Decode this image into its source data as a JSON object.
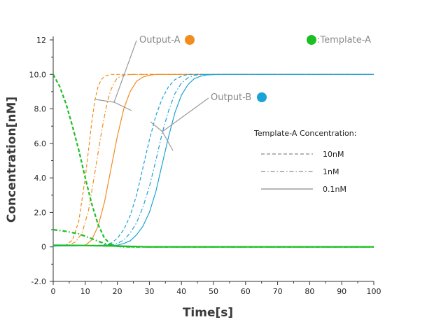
{
  "chart_data": {
    "type": "line",
    "title": "",
    "xlabel": "Time[s]",
    "ylabel": "Concentration[nM]",
    "xlim": [
      0,
      100
    ],
    "ylim": [
      -2,
      12
    ],
    "x_ticks": [
      "0",
      "10",
      "20",
      "30",
      "40",
      "50",
      "60",
      "70",
      "80",
      "90",
      "100"
    ],
    "y_ticks": [
      "-2.0",
      "0",
      "2.0",
      "4.0",
      "6.0",
      "8.0",
      "10.0",
      "12"
    ],
    "grid": false,
    "colors": {
      "output_a": "#f28c1e",
      "output_b": "#1aa3d6",
      "template_a": "#1bbf24",
      "annotation": "#9a9a9a",
      "legend_line": "#8a8a8a"
    },
    "annotations": {
      "output_a": "Output-A",
      "output_b": "Output-B",
      "template_a": ":Template-A"
    },
    "legend": {
      "title": "Template-A Concentration:",
      "placement": "right",
      "entries": [
        {
          "label": "10nM",
          "style": "dashed"
        },
        {
          "label": "1nM",
          "style": "dashdot"
        },
        {
          "label": "0.1nM",
          "style": "solid"
        }
      ]
    },
    "series": [
      {
        "group": "output_a",
        "style": "dashed",
        "x": [
          0,
          4,
          6,
          8,
          10,
          11,
          12,
          13,
          14,
          15,
          16,
          18,
          20,
          25,
          100
        ],
        "y": [
          0.05,
          0.1,
          0.4,
          1.5,
          4.0,
          5.6,
          7.2,
          8.5,
          9.3,
          9.7,
          9.9,
          10.0,
          10.0,
          10.0,
          10.0
        ]
      },
      {
        "group": "output_a",
        "style": "dashdot",
        "x": [
          0,
          5,
          7,
          9,
          11,
          13,
          15,
          16,
          17,
          18,
          19,
          20,
          22,
          25,
          30,
          100
        ],
        "y": [
          0.05,
          0.1,
          0.3,
          0.8,
          2.1,
          4.3,
          6.6,
          7.6,
          8.5,
          9.1,
          9.5,
          9.8,
          9.95,
          10.0,
          10.0,
          10.0
        ]
      },
      {
        "group": "output_a",
        "style": "solid",
        "x": [
          0,
          10,
          12,
          14,
          16,
          18,
          20,
          22,
          24,
          26,
          28,
          30,
          32,
          35,
          40,
          100
        ],
        "y": [
          0.05,
          0.1,
          0.4,
          1.2,
          2.6,
          4.5,
          6.4,
          8.0,
          9.0,
          9.6,
          9.85,
          9.95,
          10.0,
          10.0,
          10.0,
          10.0
        ]
      },
      {
        "group": "output_b",
        "style": "dashed",
        "x": [
          0,
          15,
          18,
          20,
          22,
          24,
          26,
          28,
          30,
          32,
          34,
          36,
          38,
          40,
          42,
          45,
          50,
          100
        ],
        "y": [
          0.05,
          0.1,
          0.2,
          0.5,
          1.0,
          1.8,
          3.0,
          4.6,
          6.2,
          7.6,
          8.6,
          9.3,
          9.7,
          9.9,
          10.0,
          10.0,
          10.0,
          10.0
        ]
      },
      {
        "group": "output_b",
        "style": "dashdot",
        "x": [
          0,
          18,
          20,
          22,
          24,
          26,
          28,
          30,
          32,
          34,
          36,
          38,
          40,
          42,
          44,
          47,
          50,
          100
        ],
        "y": [
          0.05,
          0.1,
          0.2,
          0.4,
          0.8,
          1.4,
          2.3,
          3.5,
          5.0,
          6.6,
          7.9,
          8.9,
          9.5,
          9.8,
          9.95,
          10.0,
          10.0,
          10.0
        ]
      },
      {
        "group": "output_b",
        "style": "solid",
        "x": [
          0,
          20,
          22,
          24,
          26,
          28,
          30,
          32,
          34,
          36,
          38,
          40,
          42,
          44,
          46,
          48,
          52,
          100
        ],
        "y": [
          0.05,
          0.1,
          0.2,
          0.35,
          0.7,
          1.2,
          2.0,
          3.2,
          4.8,
          6.4,
          7.8,
          8.8,
          9.4,
          9.75,
          9.9,
          9.97,
          10.0,
          10.0
        ]
      },
      {
        "group": "template_a",
        "style": "dashed",
        "x": [
          0,
          2,
          4,
          6,
          8,
          10,
          12,
          14,
          16,
          18,
          20,
          25,
          100
        ],
        "y": [
          10.0,
          9.3,
          8.3,
          7.0,
          5.6,
          4.0,
          2.5,
          1.3,
          0.5,
          0.15,
          0.05,
          0.0,
          0.0
        ]
      },
      {
        "group": "template_a",
        "style": "dashdot",
        "x": [
          0,
          4,
          8,
          10,
          12,
          14,
          16,
          18,
          20,
          22,
          25,
          100
        ],
        "y": [
          1.0,
          0.9,
          0.75,
          0.62,
          0.48,
          0.33,
          0.2,
          0.1,
          0.04,
          0.0,
          0.0,
          0.0
        ]
      },
      {
        "group": "template_a",
        "style": "solid",
        "x": [
          0,
          10,
          20,
          30,
          100
        ],
        "y": [
          0.1,
          0.08,
          0.05,
          0.0,
          0.0
        ]
      }
    ]
  }
}
